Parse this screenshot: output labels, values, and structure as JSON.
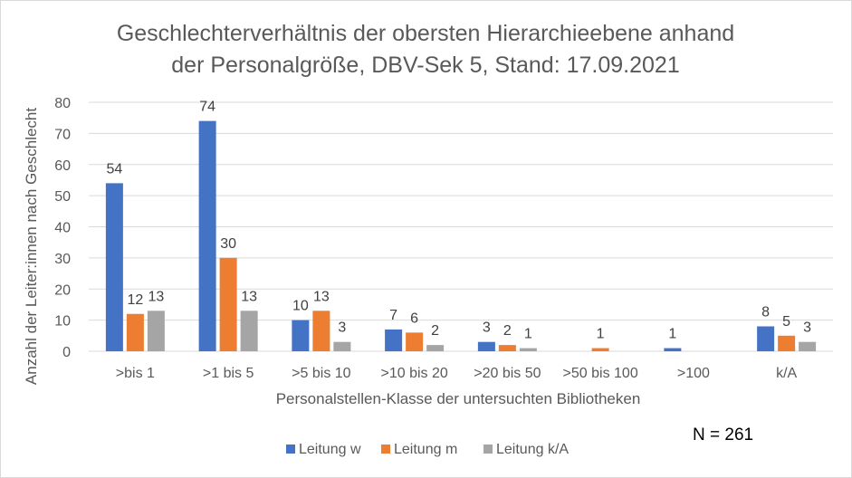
{
  "chart_data": {
    "type": "bar",
    "title_line1": "Geschlechterverhältnis der obersten Hierarchieebene anhand",
    "title_line2": "der Personalgröße, DBV-Sek 5, Stand: 17.09.2021",
    "xlabel": "Personalstellen-Klasse der untersuchten Bibliotheken",
    "ylabel": "Anzahl der Leiter:innen  nach Geschlecht",
    "categories": [
      ">bis 1",
      ">1 bis 5",
      ">5 bis 10",
      ">10 bis 20",
      ">20 bis 50",
      ">50 bis 100",
      ">100",
      "k/A"
    ],
    "series": [
      {
        "name": "Leitung w",
        "color": "#4472c4",
        "values": [
          54,
          74,
          10,
          7,
          3,
          null,
          1,
          8
        ]
      },
      {
        "name": "Leitung m",
        "color": "#ed7d31",
        "values": [
          12,
          30,
          13,
          6,
          2,
          1,
          null,
          5
        ]
      },
      {
        "name": "Leitung k/A",
        "color": "#a5a5a5",
        "values": [
          13,
          13,
          3,
          2,
          1,
          null,
          null,
          3
        ]
      }
    ],
    "ylim": [
      0,
      80
    ],
    "yticks": [
      0,
      10,
      20,
      30,
      40,
      50,
      60,
      70,
      80
    ],
    "grid": true,
    "legend_position": "bottom",
    "annotation": "N = 261"
  }
}
